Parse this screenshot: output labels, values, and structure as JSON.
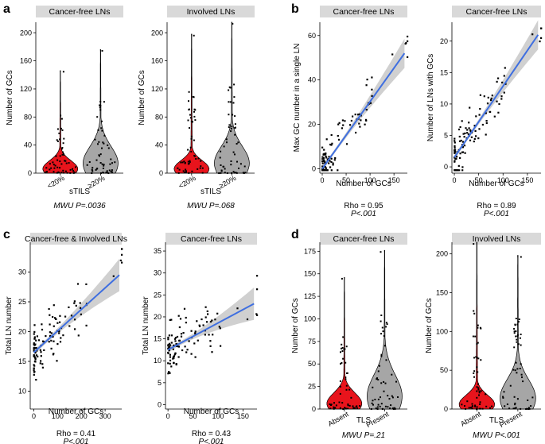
{
  "colors": {
    "red": "#e8141c",
    "gray": "#a6a6a6",
    "line": "#3f6fe0",
    "band": "#c8c8c8",
    "strip": "#d9d9d9"
  },
  "panels": {
    "a": "a",
    "b": "b",
    "c": "c",
    "d": "d"
  },
  "chart_data": [
    {
      "id": "a1",
      "panel": "a",
      "type": "violin",
      "title": "Cancer-free LNs",
      "xlabel": "sTILS",
      "ylabel": "Number of GCs",
      "categories": [
        "<20%",
        "≥20%"
      ],
      "ylim": [
        0,
        215
      ],
      "yticks": [
        0,
        40,
        80,
        120,
        160,
        200
      ],
      "maxima": [
        146,
        176
      ],
      "stat": "MWU P=.0036"
    },
    {
      "id": "a2",
      "panel": "a",
      "type": "violin",
      "title": "Involved LNs",
      "xlabel": "sTILS",
      "ylabel": "Number of GCs",
      "categories": [
        "<20%",
        "≥20%"
      ],
      "ylim": [
        0,
        215
      ],
      "yticks": [
        0,
        40,
        80,
        120,
        160,
        200
      ],
      "maxima": [
        198,
        215
      ],
      "stat": "MWU P=.068"
    },
    {
      "id": "b1",
      "panel": "b",
      "type": "scatter",
      "title": "Cancer-free LNs",
      "xlabel": "Number of GCs",
      "ylabel": "Max GC number in a single LN",
      "xlim": [
        -5,
        178
      ],
      "ylim": [
        -2,
        66
      ],
      "xticks": [
        0,
        50,
        100,
        150
      ],
      "yticks": [
        0,
        20,
        40,
        60
      ],
      "fit": [
        [
          0,
          0
        ],
        [
          172,
          52
        ]
      ],
      "stat1": "Rho = 0.95",
      "stat2": "P<.001"
    },
    {
      "id": "b2",
      "panel": "b",
      "type": "scatter",
      "title": "Cancer-free LNs",
      "xlabel": "Number of GCs",
      "ylabel": "Number of LNs with GCs",
      "xlim": [
        -5,
        178
      ],
      "ylim": [
        -1,
        23
      ],
      "xticks": [
        0,
        50,
        100,
        150
      ],
      "yticks": [
        0,
        5,
        10,
        15,
        20
      ],
      "fit": [
        [
          0,
          1.5
        ],
        [
          172,
          21
        ]
      ],
      "stat1": "Rho = 0.89",
      "stat2": "P<.001"
    },
    {
      "id": "c1",
      "panel": "c",
      "type": "scatter",
      "title": "Cancer-free & Involved LNs",
      "xlabel": "Number of GCs",
      "ylabel": "Total LN number",
      "xlim": [
        -15,
        370
      ],
      "ylim": [
        7,
        35
      ],
      "xticks": [
        0,
        100,
        200,
        300
      ],
      "yticks": [
        10,
        15,
        20,
        25,
        30
      ],
      "fit": [
        [
          0,
          16.5
        ],
        [
          360,
          29.5
        ]
      ],
      "stat1": "Rho = 0.41",
      "stat2": "P<.001"
    },
    {
      "id": "c2",
      "panel": "c",
      "type": "scatter",
      "title": "Cancer-free LNs",
      "xlabel": "Number of GCs",
      "ylabel": "Total LN number",
      "xlim": [
        -5,
        178
      ],
      "ylim": [
        -1,
        37
      ],
      "xticks": [
        0,
        50,
        100,
        150
      ],
      "yticks": [
        0,
        5,
        10,
        15,
        20,
        25,
        30,
        35
      ],
      "fit": [
        [
          0,
          12.5
        ],
        [
          172,
          23
        ]
      ],
      "stat1": "Rho = 0.43",
      "stat2": "P<.001"
    },
    {
      "id": "d1",
      "panel": "d",
      "type": "violin",
      "title": "Cancer-free LNs",
      "xlabel": "TLS",
      "ylabel": "Number of GCs",
      "categories": [
        "Absent",
        "Present"
      ],
      "ylim": [
        0,
        185
      ],
      "yticks": [
        0,
        25,
        50,
        75,
        100,
        125,
        150,
        175
      ],
      "maxima": [
        146,
        176
      ],
      "stat": "MWU P=.21"
    },
    {
      "id": "d2",
      "panel": "d",
      "type": "violin",
      "title": "Involved LNs",
      "xlabel": "TLS",
      "ylabel": "Number of GCs",
      "categories": [
        "Absent",
        "Present"
      ],
      "ylim": [
        0,
        215
      ],
      "yticks": [
        0,
        50,
        100,
        150,
        200
      ],
      "maxima": [
        215,
        198
      ],
      "stat": "MWU P<.001"
    }
  ]
}
